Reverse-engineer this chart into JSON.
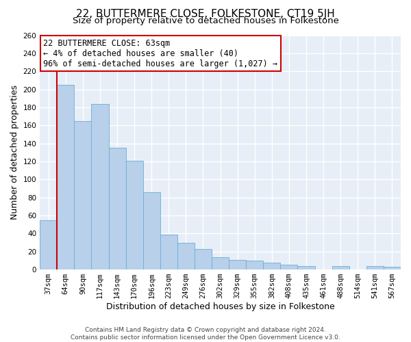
{
  "title": "22, BUTTERMERE CLOSE, FOLKESTONE, CT19 5JH",
  "subtitle": "Size of property relative to detached houses in Folkestone",
  "xlabel": "Distribution of detached houses by size in Folkestone",
  "ylabel": "Number of detached properties",
  "bar_labels": [
    "37sqm",
    "64sqm",
    "90sqm",
    "117sqm",
    "143sqm",
    "170sqm",
    "196sqm",
    "223sqm",
    "249sqm",
    "276sqm",
    "302sqm",
    "329sqm",
    "355sqm",
    "382sqm",
    "408sqm",
    "435sqm",
    "461sqm",
    "488sqm",
    "514sqm",
    "541sqm",
    "567sqm"
  ],
  "bar_values": [
    55,
    205,
    165,
    184,
    135,
    121,
    86,
    39,
    30,
    23,
    14,
    11,
    10,
    8,
    5,
    4,
    0,
    4,
    0,
    4,
    3
  ],
  "bar_color": "#b8d0ea",
  "bar_edge_color": "#6aaed6",
  "ylim": [
    0,
    260
  ],
  "yticks": [
    0,
    20,
    40,
    60,
    80,
    100,
    120,
    140,
    160,
    180,
    200,
    220,
    240,
    260
  ],
  "annotation_title": "22 BUTTERMERE CLOSE: 63sqm",
  "annotation_line1": "← 4% of detached houses are smaller (40)",
  "annotation_line2": "96% of semi-detached houses are larger (1,027) →",
  "annotation_box_facecolor": "#ffffff",
  "annotation_box_edgecolor": "#cc0000",
  "vertical_line_color": "#cc0000",
  "footer1": "Contains HM Land Registry data © Crown copyright and database right 2024.",
  "footer2": "Contains public sector information licensed under the Open Government Licence v3.0.",
  "background_color": "#e8eef7",
  "grid_color": "#ffffff",
  "title_fontsize": 11,
  "subtitle_fontsize": 9.5,
  "axis_label_fontsize": 9,
  "tick_fontsize": 7.5,
  "annotation_fontsize": 8.5,
  "footer_fontsize": 6.5
}
